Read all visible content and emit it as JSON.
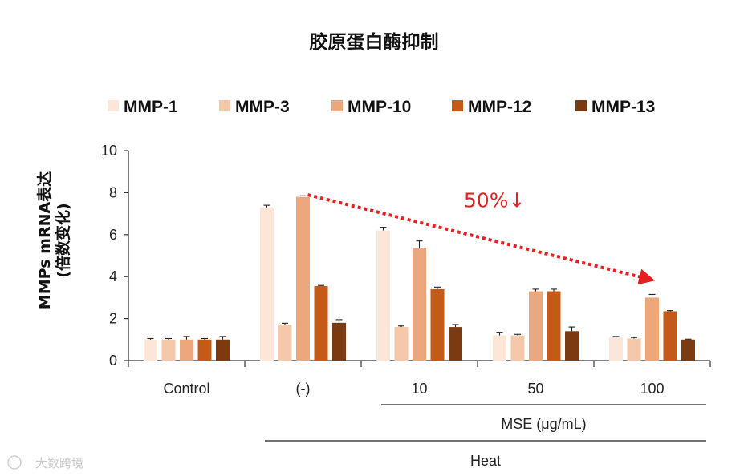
{
  "chart_data": {
    "type": "bar",
    "title": "胶原蛋白酶抑制",
    "ylabel_line1": "MMPs mRNA表达",
    "ylabel_line2": "(倍数变化)",
    "ylim": [
      0,
      10
    ],
    "yticks": [
      "0",
      "2",
      "4",
      "6",
      "8",
      "10"
    ],
    "grid": false,
    "legend_position": "top",
    "categories": [
      "Control",
      "(-)",
      "10",
      "50",
      "100"
    ],
    "group_labels": [
      {
        "text": "MSE (μg/mL)",
        "span": [
          "10",
          "100"
        ]
      },
      {
        "text": "Heat",
        "span": [
          "(-)",
          "100"
        ]
      }
    ],
    "series": [
      {
        "name": "MMP-1",
        "color": "#fbe6d8",
        "values": [
          1.0,
          7.3,
          6.2,
          1.2,
          1.1
        ],
        "errors": [
          0.05,
          0.1,
          0.15,
          0.15,
          0.05
        ]
      },
      {
        "name": "MMP-3",
        "color": "#f5c8aa",
        "values": [
          1.0,
          1.7,
          1.6,
          1.2,
          1.05
        ],
        "errors": [
          0.05,
          0.08,
          0.05,
          0.05,
          0.05
        ]
      },
      {
        "name": "MMP-10",
        "color": "#eda77c",
        "values": [
          1.0,
          7.8,
          5.35,
          3.3,
          3.0
        ],
        "errors": [
          0.15,
          0.05,
          0.35,
          0.1,
          0.15
        ]
      },
      {
        "name": "MMP-12",
        "color": "#c45a18",
        "values": [
          1.0,
          3.55,
          3.4,
          3.3,
          2.35
        ],
        "errors": [
          0.05,
          0.03,
          0.1,
          0.1,
          0.03
        ]
      },
      {
        "name": "MMP-13",
        "color": "#7b3a10",
        "values": [
          1.0,
          1.8,
          1.6,
          1.4,
          1.0
        ],
        "errors": [
          0.15,
          0.15,
          0.12,
          0.2,
          0.02
        ]
      }
    ],
    "annotation": {
      "text": "50%↓",
      "color": "#e62020",
      "arrow_from": {
        "category": "(-)",
        "value": 7.9
      },
      "arrow_to": {
        "category": "100",
        "value": 3.9
      }
    }
  },
  "watermark": "大数跨境"
}
